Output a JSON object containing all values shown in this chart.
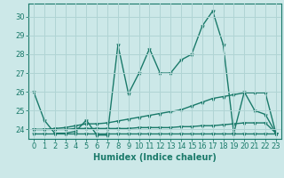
{
  "xlabel": "Humidex (Indice chaleur)",
  "bg_color": "#cce8e8",
  "line_color": "#1a7a6a",
  "grid_color": "#b0d4d4",
  "xlim": [
    -0.5,
    23.5
  ],
  "ylim": [
    23.5,
    30.7
  ],
  "yticks": [
    24,
    25,
    26,
    27,
    28,
    29,
    30
  ],
  "xticks": [
    0,
    1,
    2,
    3,
    4,
    5,
    6,
    7,
    8,
    9,
    10,
    11,
    12,
    13,
    14,
    15,
    16,
    17,
    18,
    19,
    20,
    21,
    22,
    23
  ],
  "series": [
    [
      26.0,
      24.5,
      23.8,
      23.8,
      23.9,
      24.5,
      23.7,
      23.7,
      28.5,
      25.9,
      27.0,
      28.3,
      27.0,
      27.0,
      27.7,
      28.0,
      29.5,
      30.3,
      28.5,
      23.8,
      26.0,
      25.0,
      24.8,
      23.8
    ],
    [
      23.8,
      23.8,
      23.8,
      23.8,
      23.8,
      23.8,
      23.8,
      23.8,
      23.8,
      23.8,
      23.8,
      23.8,
      23.8,
      23.8,
      23.8,
      23.8,
      23.8,
      23.8,
      23.8,
      23.8,
      23.8,
      23.8,
      23.8,
      23.8
    ],
    [
      24.0,
      24.0,
      24.05,
      24.1,
      24.2,
      24.3,
      24.3,
      24.35,
      24.45,
      24.55,
      24.65,
      24.75,
      24.85,
      24.95,
      25.05,
      25.25,
      25.45,
      25.65,
      25.75,
      25.85,
      25.95,
      25.95,
      25.95,
      23.8
    ],
    [
      24.0,
      24.0,
      24.0,
      24.0,
      24.05,
      24.05,
      24.05,
      24.05,
      24.05,
      24.05,
      24.1,
      24.1,
      24.1,
      24.1,
      24.15,
      24.15,
      24.2,
      24.2,
      24.25,
      24.3,
      24.35,
      24.35,
      24.35,
      23.8
    ]
  ],
  "marker": "*",
  "marker_size": 3,
  "line_width": 1.0,
  "tick_fontsize": 6,
  "xlabel_fontsize": 7
}
